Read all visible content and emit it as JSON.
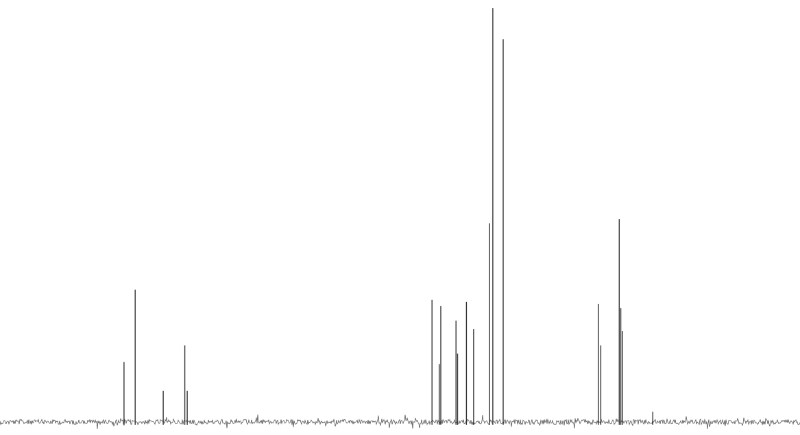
{
  "chart_data": {
    "type": "line",
    "title": "",
    "xlabel": "",
    "ylabel": "",
    "x_direction": "decreasing-left-to-right",
    "axes_visible": false,
    "grid": false,
    "legend": "none",
    "ylim": [
      0,
      1.0
    ],
    "baseline": 0,
    "noise_amplitude": 0.012,
    "peaks": [
      {
        "x": 0.155,
        "height": 0.145
      },
      {
        "x": 0.169,
        "height": 0.32
      },
      {
        "x": 0.204,
        "height": 0.075
      },
      {
        "x": 0.231,
        "height": 0.185
      },
      {
        "x": 0.234,
        "height": 0.075
      },
      {
        "x": 0.54,
        "height": 0.295
      },
      {
        "x": 0.549,
        "height": 0.14
      },
      {
        "x": 0.551,
        "height": 0.28
      },
      {
        "x": 0.57,
        "height": 0.245
      },
      {
        "x": 0.572,
        "height": 0.165
      },
      {
        "x": 0.583,
        "height": 0.29
      },
      {
        "x": 0.592,
        "height": 0.225
      },
      {
        "x": 0.612,
        "height": 0.48
      },
      {
        "x": 0.616,
        "height": 1.0
      },
      {
        "x": 0.629,
        "height": 0.925
      },
      {
        "x": 0.748,
        "height": 0.285
      },
      {
        "x": 0.751,
        "height": 0.185
      },
      {
        "x": 0.774,
        "height": 0.49
      },
      {
        "x": 0.776,
        "height": 0.275
      },
      {
        "x": 0.778,
        "height": 0.22
      },
      {
        "x": 0.816,
        "height": 0.025
      }
    ],
    "colors": {
      "trace": "#333333",
      "noise": "#555555",
      "background": "#ffffff"
    }
  }
}
